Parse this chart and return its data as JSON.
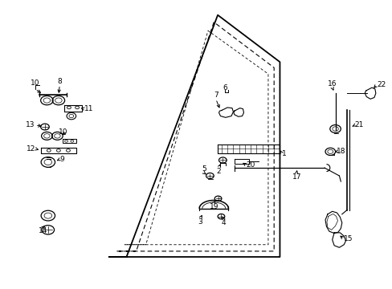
{
  "bg_color": "#ffffff",
  "line_color": "#000000",
  "figsize": [
    4.89,
    3.6
  ],
  "dpi": 100,
  "door_outer": {
    "x": [
      0.28,
      0.55,
      0.72,
      0.72,
      0.28
    ],
    "y": [
      0.1,
      0.97,
      0.75,
      0.1,
      0.1
    ]
  },
  "door_inner1": {
    "x": [
      0.3,
      0.53,
      0.695,
      0.695,
      0.3
    ],
    "y": [
      0.12,
      0.935,
      0.73,
      0.12,
      0.12
    ]
  },
  "door_inner2": {
    "x": [
      0.32,
      0.51,
      0.675,
      0.675,
      0.32
    ],
    "y": [
      0.145,
      0.895,
      0.705,
      0.145,
      0.145
    ]
  }
}
